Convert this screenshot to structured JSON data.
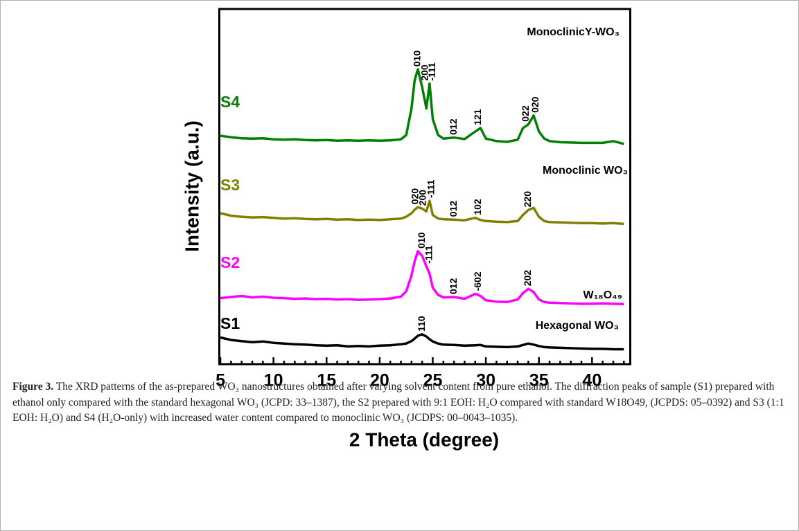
{
  "chart_data": {
    "type": "line",
    "x_label": "2 Theta (degree)",
    "y_label": "Intensity (a.u.)",
    "xlim": [
      4.9,
      43.6
    ],
    "xticks": [
      5,
      10,
      15,
      20,
      25,
      30,
      35,
      40
    ],
    "xminorticks": [
      6,
      7,
      8,
      9,
      11,
      12,
      13,
      14,
      16,
      17,
      18,
      19,
      21,
      22,
      23,
      24,
      26,
      27,
      28,
      29,
      31,
      32,
      33,
      34,
      36,
      37,
      38,
      39,
      41,
      42,
      43
    ],
    "ylim": [
      0,
      100
    ],
    "x": [
      5,
      6,
      7,
      8,
      9,
      10,
      11,
      12,
      13,
      14,
      15,
      16,
      17,
      18,
      19,
      20,
      21,
      22,
      22.5,
      23,
      23.3,
      23.6,
      24,
      24.4,
      24.7,
      25,
      25.5,
      26,
      27,
      28,
      29,
      29.5,
      30,
      31,
      32,
      33,
      33.5,
      34,
      34.5,
      35,
      35.5,
      36,
      37,
      38,
      39,
      40,
      41,
      42,
      43
    ],
    "series": [
      {
        "name": "S1",
        "phase": "Hexagonal WO₃",
        "color": "#000000",
        "values": [
          7.5,
          6.8,
          6.5,
          6.2,
          6.4,
          6.0,
          5.8,
          5.6,
          5.5,
          5.3,
          5.2,
          5.3,
          5.0,
          5.1,
          5.0,
          5.2,
          5.3,
          5.6,
          5.8,
          6.5,
          7.2,
          8.0,
          8.4,
          7.8,
          7.0,
          6.4,
          5.8,
          5.5,
          5.4,
          5.2,
          5.3,
          5.4,
          5.0,
          4.9,
          4.8,
          5.0,
          5.4,
          5.8,
          5.5,
          5.1,
          4.8,
          4.7,
          4.6,
          4.5,
          4.4,
          4.3,
          4.3,
          4.2,
          4.2
        ],
        "peaks": [
          {
            "text": "110",
            "x": 24
          }
        ]
      },
      {
        "name": "S2",
        "phase": "W₁₈O₄₉",
        "color": "#ff00ff",
        "values": [
          18.6,
          18.9,
          19.2,
          18.8,
          19.0,
          18.7,
          18.6,
          18.4,
          18.5,
          18.3,
          18.4,
          18.2,
          18.3,
          18.1,
          18.2,
          18.3,
          18.5,
          19.0,
          20.5,
          25,
          29,
          31.8,
          30.5,
          27.5,
          25.5,
          21.5,
          19.5,
          18.8,
          18.9,
          18.4,
          19.8,
          19.2,
          18.0,
          17.6,
          17.5,
          18.2,
          20.0,
          21.2,
          20.3,
          18.2,
          17.5,
          17.3,
          17.2,
          17.1,
          17.0,
          17.0,
          17.1,
          17.0,
          16.9
        ],
        "peaks": [
          {
            "text": "010",
            "x": 24.0
          },
          {
            "text": "-111",
            "x": 24.7
          },
          {
            "text": "012",
            "x": 27
          },
          {
            "text": "-602",
            "x": 29.3
          },
          {
            "text": "202",
            "x": 34
          }
        ]
      },
      {
        "name": "S3",
        "phase": "Monoclinic WO₃",
        "color": "#808000",
        "values": [
          42.5,
          41.8,
          41.5,
          41.3,
          41.4,
          41.2,
          41.0,
          41.1,
          40.9,
          40.8,
          40.9,
          40.7,
          40.8,
          40.6,
          40.7,
          40.6,
          40.8,
          41.0,
          41.5,
          42.5,
          43.5,
          44.2,
          43.8,
          43.0,
          46.0,
          42.0,
          41.0,
          40.8,
          40.7,
          40.5,
          41.2,
          40.6,
          40.3,
          40.1,
          40.0,
          40.3,
          42.0,
          43.4,
          44.0,
          41.5,
          40.3,
          40.0,
          39.9,
          39.8,
          39.7,
          39.7,
          39.6,
          39.7,
          39.5
        ],
        "peaks": [
          {
            "text": "020",
            "x": 23.4
          },
          {
            "text": "200",
            "x": 24.1
          },
          {
            "text": "-111",
            "x": 24.9
          },
          {
            "text": "012",
            "x": 27
          },
          {
            "text": "102",
            "x": 29.3
          },
          {
            "text": "220",
            "x": 34
          }
        ]
      },
      {
        "name": "S4",
        "phase": "MonoclinicY-WO₃",
        "color": "#008000",
        "values": [
          64.3,
          63.9,
          63.6,
          63.5,
          63.6,
          63.3,
          63.2,
          63.3,
          63.1,
          63.0,
          63.1,
          62.9,
          63.0,
          62.9,
          63.0,
          62.9,
          63.0,
          63.3,
          64.5,
          72,
          80,
          83,
          78,
          72,
          79,
          69,
          64.5,
          63.5,
          63.8,
          63.4,
          65.5,
          66.5,
          63.5,
          62.8,
          62.6,
          63.2,
          66.5,
          67.5,
          70,
          65.5,
          63.5,
          62.8,
          62.5,
          62.4,
          62.3,
          62.3,
          62.3,
          62.8,
          62.0
        ],
        "peaks": [
          {
            "text": "010",
            "x": 23.6
          },
          {
            "text": "200",
            "x": 24.3
          },
          {
            "text": "-111",
            "x": 25.0
          },
          {
            "text": "012",
            "x": 27
          },
          {
            "text": "121",
            "x": 29.3
          },
          {
            "text": "022",
            "x": 33.8
          },
          {
            "text": "020",
            "x": 34.7
          }
        ]
      }
    ]
  },
  "caption": {
    "label": "Figure 3.",
    "text": "The XRD patterns of the as-prepared WO₃ nanostructures obtained after varying solvent content from pure ethanol. The diffraction peaks of sample (S1) prepared with ethanol only compared with the standard hexagonal WO₃ (JCPD: 33–1387), the S2 prepared with 9:1 EOH: H₂O compared with standard W18O49, (JCPDS: 05–0392) and S3 (1:1 EOH: H₂O) and S4 (H₂O-only) with increased water content compared to monoclinic WO₃ (JCDPS: 00–0043–1035)."
  }
}
